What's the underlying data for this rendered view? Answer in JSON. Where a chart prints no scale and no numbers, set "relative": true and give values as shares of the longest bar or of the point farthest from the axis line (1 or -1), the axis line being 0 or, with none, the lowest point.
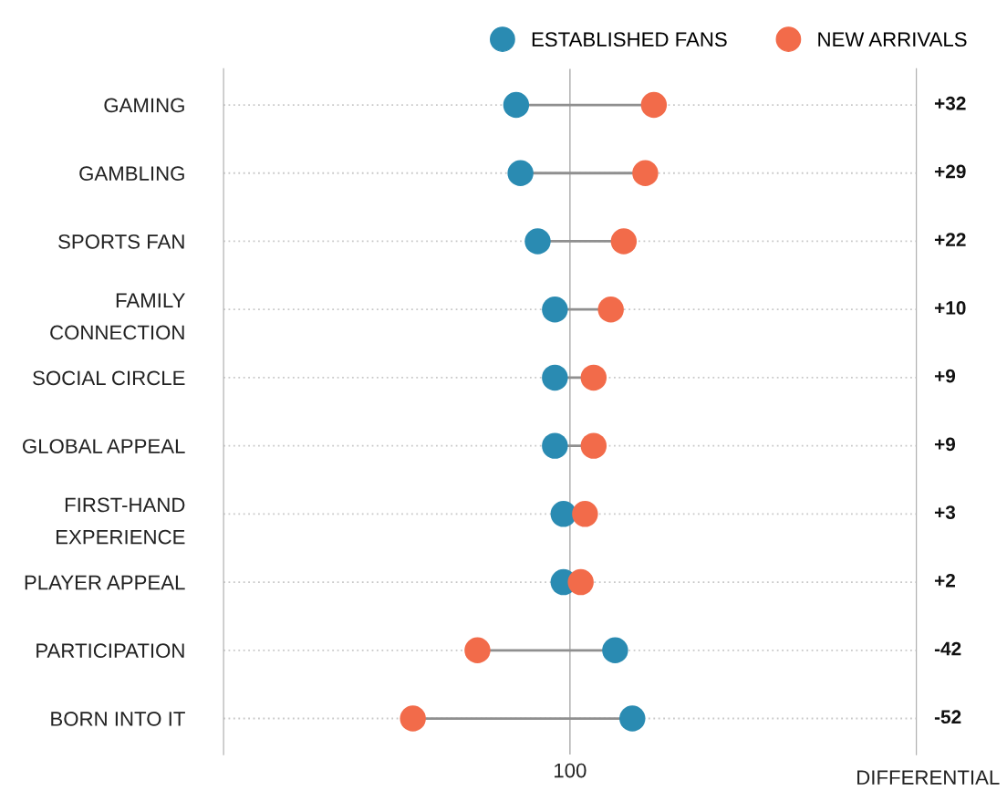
{
  "chart_data": {
    "type": "scatter",
    "orientation": "horizontal",
    "relative": true,
    "categories": [
      "GAMING",
      "GAMBLING",
      "SPORTS FAN",
      "FAMILY\nCONNECTION",
      "SOCIAL CIRCLE",
      "GLOBAL APPEAL",
      "FIRST-HAND\nEXPERIENCE",
      "PLAYER APPEAL",
      "PARTICIPATION",
      "BORN INTO IT"
    ],
    "series": [
      {
        "name": "ESTABLISHED FANS",
        "color": "#2a8bb2",
        "values": [
          0.68,
          0.69,
          0.73,
          0.77,
          0.77,
          0.77,
          0.79,
          0.79,
          0.91,
          0.95
        ]
      },
      {
        "name": "NEW ARRIVALS",
        "color": "#f26b4a",
        "values": [
          1,
          0.98,
          0.93,
          0.9,
          0.86,
          0.86,
          0.84,
          0.83,
          0.59,
          0.44
        ]
      }
    ],
    "ref_lines": [
      {
        "axis": "x",
        "value": 0.805,
        "color": "#aaaaaa"
      }
    ],
    "grid": "y",
    "legend": "top right",
    "marker": "circle",
    "annotations": [
      "+32",
      "+29",
      "+22",
      "+10",
      "+9",
      "+9",
      "+3",
      "+2",
      "-42",
      "-52",
      "100",
      "DIFFERENTIAL"
    ]
  }
}
